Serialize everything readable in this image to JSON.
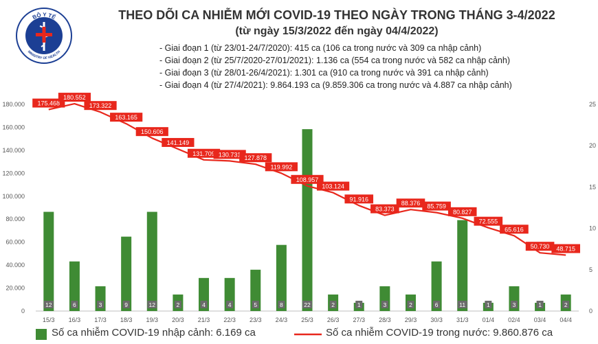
{
  "header": {
    "logo_text_top": "BỘ Y TẾ",
    "logo_text_bottom": "MINISTRY OF HEALTH",
    "title": "THEO DÕI CA NHIỄM MỚI COVID-19 THEO NGÀY TRONG THÁNG 3-4/2022",
    "subtitle": "(từ ngày 15/3/2022 đến ngày 04/4/2022)"
  },
  "stages": [
    "- Giai đoạn 1 (từ 23/01-24/7/2020): 415 ca (106 ca trong nước và 309 ca nhập cảnh)",
    "- Giai đoạn 2 (từ 25/7/2020-27/01/2021): 1.136 ca (554 ca trong nước và 582 ca nhập cảnh)",
    "- Giai đoạn 3 (từ 28/01-26/4/2021): 1.301 ca (910 ca trong nước và 391 ca nhập cảnh)",
    "- Giai đoạn 4 (từ 27/4/2021): 9.864.193 ca (9.859.306 ca trong nước và 4.887 ca nhập cảnh)"
  ],
  "legend": {
    "bars": "Số ca nhiễm COVID-19 nhập cảnh: 6.169 ca",
    "line": "Số ca nhiễm COVID-19 trong nước: 9.860.876 ca"
  },
  "chart_data": {
    "type": "bar+line",
    "categories": [
      "15/3",
      "16/3",
      "17/3",
      "18/3",
      "19/3",
      "20/3",
      "21/3",
      "22/3",
      "23/3",
      "24/3",
      "25/3",
      "26/3",
      "27/3",
      "28/3",
      "29/3",
      "30/3",
      "31/3",
      "01/4",
      "02/4",
      "03/4",
      "04/4"
    ],
    "series": [
      {
        "type": "bar",
        "axis": "right",
        "values": [
          12,
          6,
          3,
          9,
          12,
          2,
          4,
          4,
          5,
          8,
          22,
          2,
          1,
          3,
          2,
          6,
          11,
          1,
          3,
          1,
          2
        ],
        "color": "#3f8b34"
      },
      {
        "type": "line",
        "axis": "left",
        "values": [
          175468,
          180552,
          173322,
          163165,
          150606,
          141149,
          131709,
          130731,
          127878,
          119992,
          108957,
          103124,
          91916,
          83373,
          88376,
          85759,
          80827,
          72555,
          65616,
          50730,
          48715
        ],
        "labels": [
          "175.468",
          "180.552",
          "173.322",
          "163.165",
          "150.606",
          "141.149",
          "131.709",
          "130.731",
          "127.878",
          "119.992",
          "108.957",
          "103.124",
          "91.916",
          "83.373",
          "88.376",
          "85.759",
          "80.827",
          "72.555",
          "65.616",
          "50.730",
          "48.715"
        ],
        "color": "#e8271c"
      }
    ],
    "y_left": {
      "min": 0,
      "max": 180000,
      "ticks": [
        "0",
        "20.000",
        "40.000",
        "60.000",
        "80.000",
        "100.000",
        "120.000",
        "140.000",
        "160.000",
        "180.000"
      ]
    },
    "y_right": {
      "min": 0,
      "max": 25,
      "ticks": [
        "0",
        "5",
        "10",
        "15",
        "20",
        "25"
      ]
    },
    "grid": false,
    "legend_position": "bottom"
  }
}
